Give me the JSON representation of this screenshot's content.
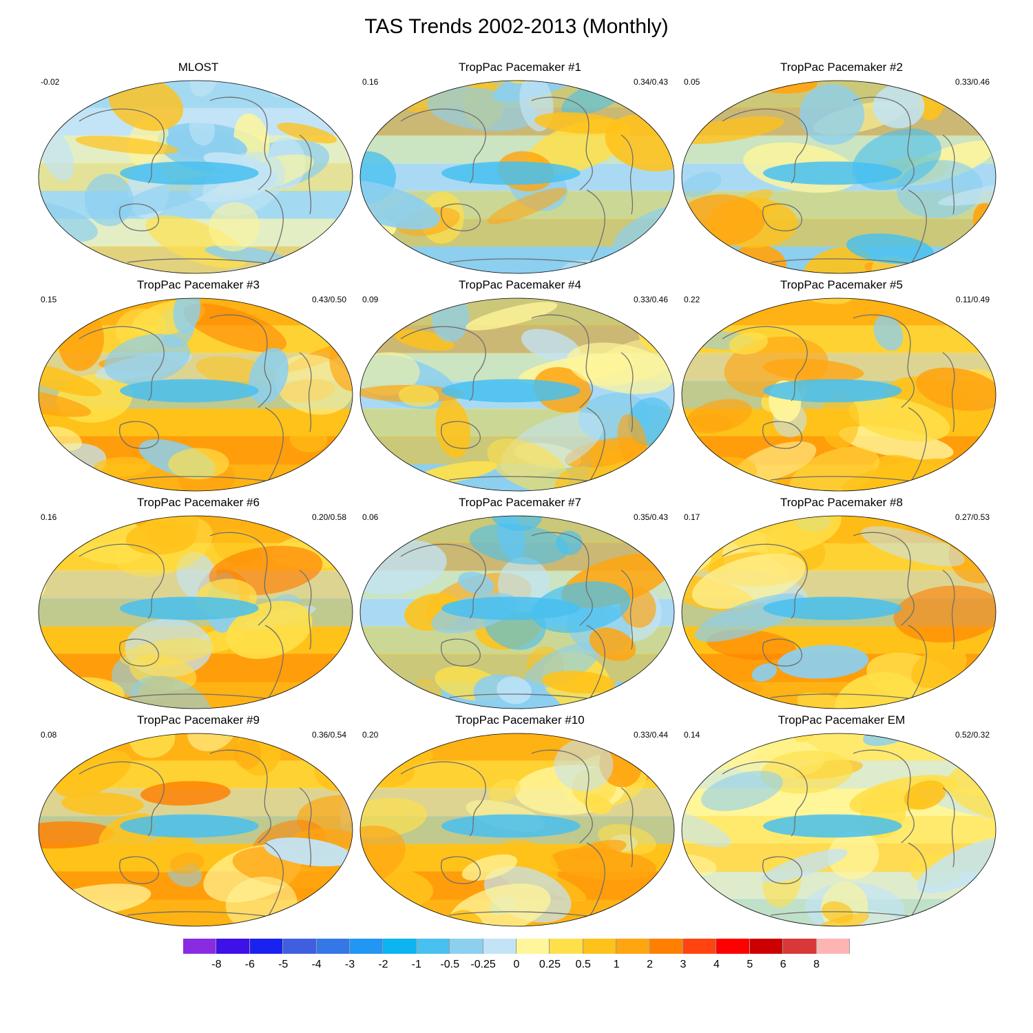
{
  "title": "TAS Trends 2002-2013 (Monthly)",
  "panels": [
    {
      "title": "MLOST",
      "left_stat": "-0.02",
      "right_stat": "",
      "palette": "cool",
      "seed": 1
    },
    {
      "title": "TropPac Pacemaker #1",
      "left_stat": "0.16",
      "right_stat": "0.34/0.43",
      "palette": "mixed",
      "seed": 2
    },
    {
      "title": "TropPac Pacemaker #2",
      "left_stat": "0.05",
      "right_stat": "0.33/0.46",
      "palette": "mixed",
      "seed": 3
    },
    {
      "title": "TropPac Pacemaker #3",
      "left_stat": "0.15",
      "right_stat": "0.43/0.50",
      "palette": "warm",
      "seed": 4
    },
    {
      "title": "TropPac Pacemaker #4",
      "left_stat": "0.09",
      "right_stat": "0.33/0.46",
      "palette": "mixed",
      "seed": 5
    },
    {
      "title": "TropPac Pacemaker #5",
      "left_stat": "0.22",
      "right_stat": "0.11/0.49",
      "palette": "warm",
      "seed": 6
    },
    {
      "title": "TropPac Pacemaker #6",
      "left_stat": "0.16",
      "right_stat": "0.20/0.58",
      "palette": "warm",
      "seed": 7
    },
    {
      "title": "TropPac Pacemaker #7",
      "left_stat": "0.06",
      "right_stat": "0.35/0.43",
      "palette": "mixed",
      "seed": 8
    },
    {
      "title": "TropPac Pacemaker #8",
      "left_stat": "0.17",
      "right_stat": "0.27/0.53",
      "palette": "warm",
      "seed": 9
    },
    {
      "title": "TropPac Pacemaker #9",
      "left_stat": "0.08",
      "right_stat": "0.36/0.54",
      "palette": "warm",
      "seed": 10
    },
    {
      "title": "TropPac Pacemaker #10",
      "left_stat": "0.20",
      "right_stat": "0.33/0.44",
      "palette": "warm",
      "seed": 11
    },
    {
      "title": "TropPac Pacemaker EM",
      "left_stat": "0.14",
      "right_stat": "0.52/0.32",
      "palette": "pale",
      "seed": 12
    }
  ],
  "colorbar": {
    "colors": [
      "#8a2be2",
      "#3f10e8",
      "#1a22f0",
      "#3f5fe0",
      "#3478e8",
      "#2196f3",
      "#0cb4f0",
      "#48c0f0",
      "#8ccfef",
      "#c2e4f6",
      "#fff59a",
      "#ffe04a",
      "#ffc21a",
      "#ffa510",
      "#ff8000",
      "#ff4410",
      "#ff0000",
      "#cc0000",
      "#d83838",
      "#ffb4b4"
    ],
    "labels": [
      "-8",
      "-6",
      "-5",
      "-4",
      "-3",
      "-2",
      "-1",
      "-0.5",
      "-0.25",
      "0",
      "0.25",
      "0.5",
      "1",
      "2",
      "3",
      "4",
      "5",
      "6",
      "8"
    ]
  }
}
